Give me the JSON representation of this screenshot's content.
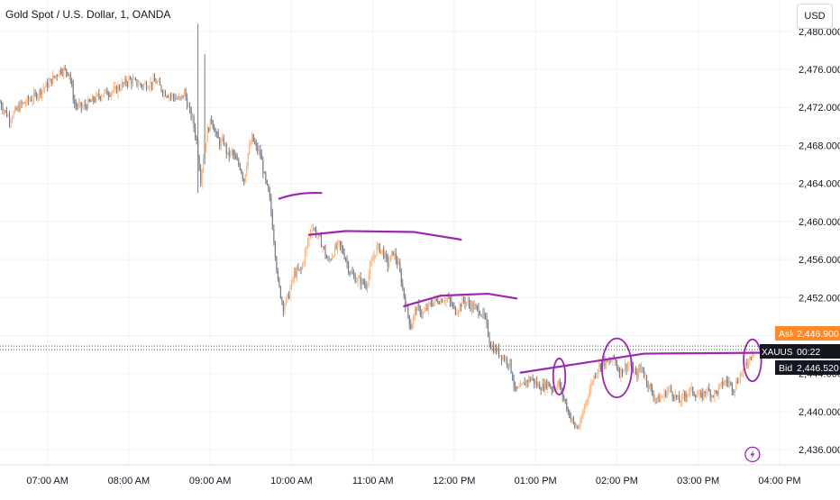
{
  "header": {
    "title": "Gold Spot / U.S. Dollar, 1, OANDA",
    "currency_button": "USD"
  },
  "price_scale": {
    "ask_label": "Ask",
    "ask_value": "2,446.900",
    "symbol_label": "XAUUSD",
    "countdown": "00:22",
    "bid_label": "Bid",
    "bid_value": "2,446.520",
    "colors": {
      "ask": "#ff8a2b",
      "bid_symbol": "#131722",
      "current_line": "#131722"
    }
  },
  "chart_data": {
    "type": "candlestick",
    "title": "Gold Spot / U.S. Dollar, 1, OANDA",
    "x_ticks": [
      "07:00 AM",
      "08:00 AM",
      "09:00 AM",
      "10:00 AM",
      "11:00 AM",
      "12:00 PM",
      "01:00 PM",
      "02:00 PM",
      "03:00 PM",
      "04:00 PM"
    ],
    "y_ticks": [
      "2,480.000",
      "2,476.000",
      "2,472.000",
      "2,468.000",
      "2,464.000",
      "2,460.000",
      "2,456.000",
      "2,452.000",
      "2,448.000",
      "2,444.000",
      "2,440.000",
      "2,436.000"
    ],
    "x_range_minutes": [
      385,
      970
    ],
    "ylim": [
      2434.4,
      2483.3
    ],
    "grid": true,
    "colors": {
      "up": "#ffb27a",
      "down": "#787b86",
      "annotation": "#9c27b0"
    },
    "price_path": [
      [
        385,
        2472.5
      ],
      [
        392,
        2470.8
      ],
      [
        400,
        2472.2
      ],
      [
        410,
        2473.1
      ],
      [
        420,
        2474.4
      ],
      [
        430,
        2476.0
      ],
      [
        436,
        2475.7
      ],
      [
        440,
        2472.3
      ],
      [
        446,
        2472.0
      ],
      [
        452,
        2472.6
      ],
      [
        460,
        2473.4
      ],
      [
        470,
        2473.8
      ],
      [
        480,
        2474.9
      ],
      [
        490,
        2474.3
      ],
      [
        500,
        2474.7
      ],
      [
        506,
        2473.6
      ],
      [
        512,
        2473.2
      ],
      [
        518,
        2472.8
      ],
      [
        521,
        2473.6
      ],
      [
        524,
        2471.9
      ],
      [
        527,
        2470.7
      ],
      [
        530,
        2468.4
      ],
      [
        533,
        2464.5
      ],
      [
        535,
        2466.9
      ],
      [
        538,
        2469.5
      ],
      [
        541,
        2470.8
      ],
      [
        544,
        2469.3
      ],
      [
        547,
        2468.2
      ],
      [
        550,
        2468.4
      ],
      [
        553,
        2466.9
      ],
      [
        556,
        2467.3
      ],
      [
        559,
        2466.4
      ],
      [
        562,
        2465.8
      ],
      [
        565,
        2464.3
      ],
      [
        568,
        2467.2
      ],
      [
        571,
        2468.8
      ],
      [
        574,
        2467.7
      ],
      [
        577,
        2467.1
      ],
      [
        580,
        2464.7
      ],
      [
        584,
        2462.3
      ],
      [
        587,
        2458.2
      ],
      [
        590,
        2453.6
      ],
      [
        594,
        2451.0
      ],
      [
        598,
        2452.3
      ],
      [
        602,
        2454.5
      ],
      [
        607,
        2454.9
      ],
      [
        611,
        2457.2
      ],
      [
        615,
        2459.6
      ],
      [
        619,
        2458.6
      ],
      [
        623,
        2457.4
      ],
      [
        627,
        2455.7
      ],
      [
        631,
        2456.8
      ],
      [
        635,
        2457.6
      ],
      [
        639,
        2456.5
      ],
      [
        643,
        2454.7
      ],
      [
        647,
        2454.0
      ],
      [
        651,
        2453.7
      ],
      [
        655,
        2453.3
      ],
      [
        659,
        2455.6
      ],
      [
        663,
        2457.3
      ],
      [
        667,
        2456.9
      ],
      [
        671,
        2455.5
      ],
      [
        675,
        2456.8
      ],
      [
        679,
        2455.3
      ],
      [
        684,
        2451.4
      ],
      [
        688,
        2448.9
      ],
      [
        692,
        2451.0
      ],
      [
        697,
        2450.3
      ],
      [
        703,
        2451.4
      ],
      [
        709,
        2451.8
      ],
      [
        715,
        2451.9
      ],
      [
        721,
        2450.6
      ],
      [
        727,
        2451.7
      ],
      [
        733,
        2451.1
      ],
      [
        739,
        2450.6
      ],
      [
        743,
        2449.6
      ],
      [
        747,
        2446.9
      ],
      [
        752,
        2446.3
      ],
      [
        757,
        2445.6
      ],
      [
        761,
        2445.1
      ],
      [
        765,
        2442.2
      ],
      [
        769,
        2442.4
      ],
      [
        773,
        2443.2
      ],
      [
        777,
        2443.5
      ],
      [
        781,
        2442.8
      ],
      [
        785,
        2442.6
      ],
      [
        789,
        2443.0
      ],
      [
        793,
        2442.3
      ],
      [
        797,
        2443.0
      ],
      [
        801,
        2441.3
      ],
      [
        805,
        2439.7
      ],
      [
        809,
        2438.4
      ],
      [
        813,
        2438.5
      ],
      [
        816,
        2440.6
      ],
      [
        819,
        2441.9
      ],
      [
        822,
        2443.3
      ],
      [
        826,
        2444.7
      ],
      [
        830,
        2445.2
      ],
      [
        834,
        2445.1
      ],
      [
        838,
        2445.6
      ],
      [
        842,
        2444.1
      ],
      [
        846,
        2444.8
      ],
      [
        850,
        2444.9
      ],
      [
        854,
        2443.8
      ],
      [
        858,
        2444.7
      ],
      [
        862,
        2443.3
      ],
      [
        866,
        2441.9
      ],
      [
        870,
        2441.2
      ],
      [
        874,
        2441.6
      ],
      [
        878,
        2442.4
      ],
      [
        882,
        2441.8
      ],
      [
        886,
        2441.0
      ],
      [
        890,
        2441.7
      ],
      [
        894,
        2442.3
      ],
      [
        898,
        2441.9
      ],
      [
        902,
        2441.5
      ],
      [
        906,
        2442.3
      ],
      [
        910,
        2441.8
      ],
      [
        914,
        2442.1
      ],
      [
        918,
        2443.0
      ],
      [
        922,
        2443.2
      ],
      [
        926,
        2442.4
      ],
      [
        930,
        2443.6
      ],
      [
        934,
        2444.6
      ],
      [
        938,
        2445.7
      ],
      [
        941,
        2446.6
      ]
    ],
    "bid": 2446.52,
    "ask": 2446.9,
    "annotations": {
      "curves": [
        {
          "points": [
            [
              591,
              2462.4
            ],
            [
              605,
              2463.1
            ],
            [
              622,
              2463.0
            ]
          ]
        },
        {
          "points": [
            [
              613,
              2458.6
            ],
            [
              640,
              2459.0
            ],
            [
              690,
              2458.9
            ],
            [
              725,
              2458.1
            ]
          ]
        },
        {
          "points": [
            [
              683,
              2451.1
            ],
            [
              710,
              2452.2
            ],
            [
              745,
              2452.4
            ],
            [
              766,
              2451.9
            ]
          ]
        },
        {
          "points": [
            [
              769,
              2444.1
            ],
            [
              860,
              2446.1
            ],
            [
              950,
              2446.2
            ],
            [
              1001,
              2446.1
            ]
          ]
        }
      ],
      "ellipses": [
        {
          "cx": 797.5,
          "cy": 2443.7,
          "rx": 4.5,
          "ry": 1.9
        },
        {
          "cx": 840,
          "cy": 2444.6,
          "rx": 11,
          "ry": 3.1
        },
        {
          "cx": 940,
          "cy": 2445.4,
          "rx": 6.5,
          "ry": 2.2
        }
      ]
    },
    "markers": [
      {
        "x": 940,
        "y": 2435.5,
        "icon": "lightning-icon"
      }
    ]
  }
}
